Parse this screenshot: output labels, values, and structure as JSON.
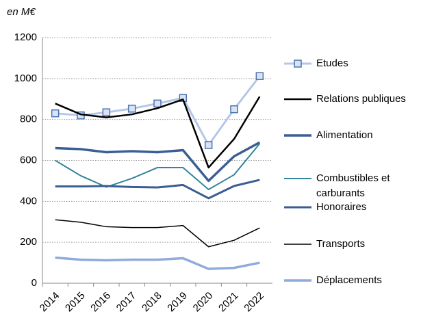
{
  "chart_data": {
    "type": "line",
    "unit_label": "en M€",
    "categories": [
      "2014",
      "2015",
      "2016",
      "2017",
      "2018",
      "2019",
      "2020",
      "2021",
      "2022"
    ],
    "ylim": [
      0,
      1200
    ],
    "yticks": [
      0,
      200,
      400,
      600,
      800,
      1000,
      1200
    ],
    "grid": true,
    "series": [
      {
        "name": "Etudes",
        "color": "#b4c7e7",
        "line_width": 3,
        "marker": "square",
        "values": [
          830,
          820,
          835,
          853,
          878,
          905,
          675,
          850,
          1012
        ]
      },
      {
        "name": "Relations publiques",
        "color": "#000000",
        "line_width": 2.5,
        "values": [
          878,
          825,
          810,
          825,
          855,
          898,
          565,
          705,
          912
        ]
      },
      {
        "name": "Alimentation",
        "color": "#3b5f94",
        "line_width": 3.5,
        "values": [
          660,
          655,
          640,
          645,
          640,
          650,
          500,
          620,
          688
        ]
      },
      {
        "name": "Combustibles et carburants",
        "color": "#31859c",
        "line_width": 2,
        "values": [
          600,
          525,
          470,
          512,
          565,
          565,
          458,
          530,
          682
        ]
      },
      {
        "name": "Honoraires",
        "color": "#3a5d92",
        "line_width": 3,
        "values": [
          473,
          473,
          475,
          470,
          468,
          480,
          415,
          475,
          505
        ]
      },
      {
        "name": "Transports",
        "color": "#000000",
        "line_width": 1.5,
        "values": [
          310,
          298,
          276,
          272,
          272,
          282,
          178,
          210,
          270
        ]
      },
      {
        "name": "Déplacements",
        "color": "#8faadc",
        "line_width": 3.5,
        "values": [
          125,
          115,
          112,
          115,
          115,
          122,
          70,
          75,
          100
        ]
      }
    ]
  }
}
